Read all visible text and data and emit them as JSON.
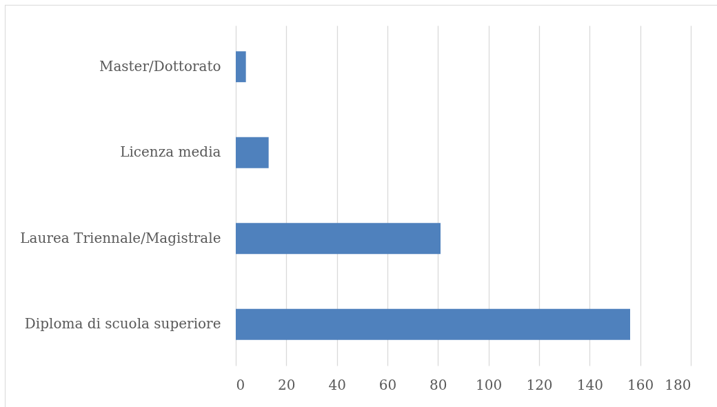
{
  "chart_data": {
    "type": "bar",
    "orientation": "horizontal",
    "categories": [
      "Master/Dottorato",
      "Licenza media",
      "Laurea Triennale/Magistrale",
      "Diploma di scuola superiore"
    ],
    "values": [
      4,
      13,
      81,
      156
    ],
    "color": "#4f81bd",
    "xlim": [
      0,
      180
    ],
    "xticks": [
      0,
      20,
      40,
      60,
      80,
      100,
      120,
      140,
      160,
      180
    ],
    "grid": "x"
  }
}
